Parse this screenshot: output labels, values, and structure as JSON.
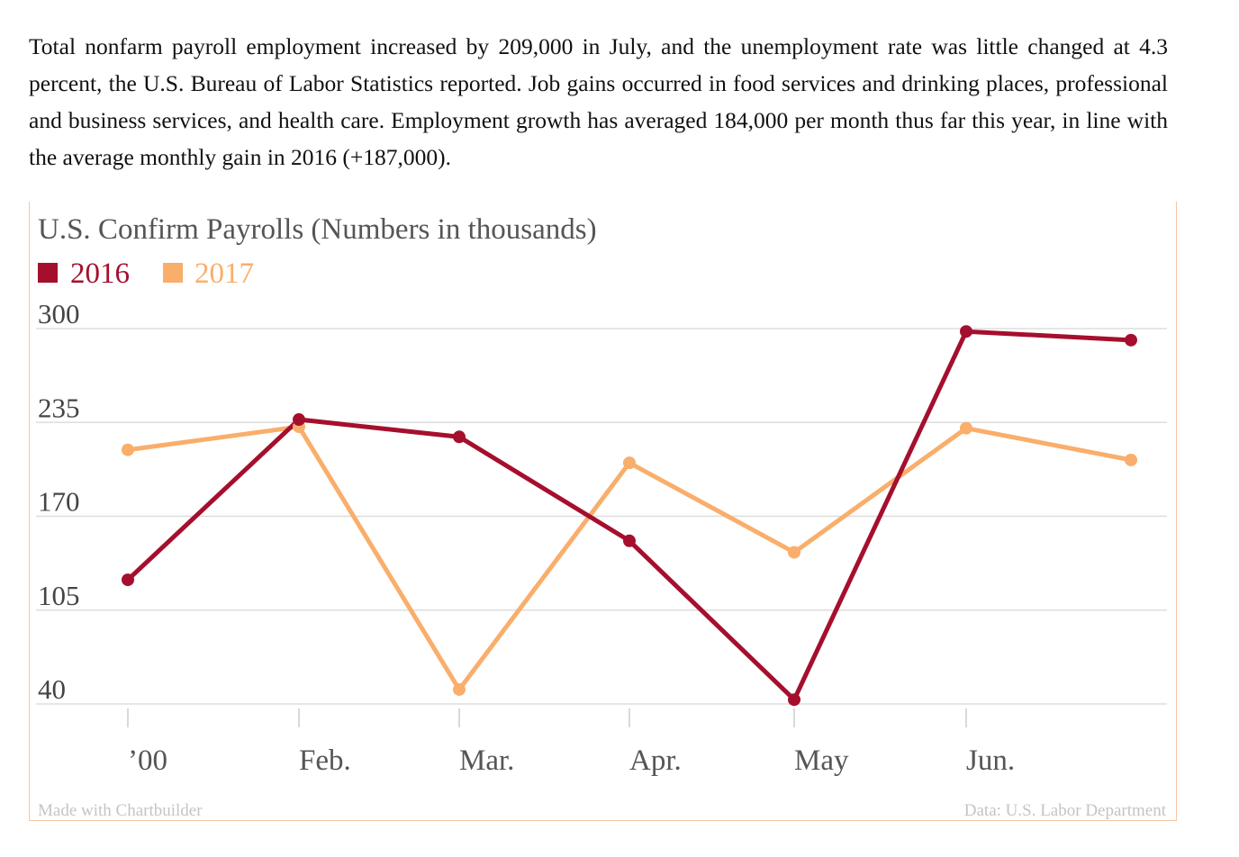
{
  "intro_text": "Total nonfarm payroll employment increased by 209,000 in July, and the unemployment rate was little changed at 4.3 percent, the U.S. Bureau of Labor Statistics reported. Job gains occurred in food services and drinking places, professional and business services, and health care. Employment growth has averaged 184,000 per month thus far this year, in line with the average monthly gain in 2016 (+187,000).",
  "chart_data": {
    "type": "line",
    "title": "U.S. Confirm Payrolls (Numbers in thousands)",
    "categories": [
      "’00",
      "Feb.",
      "Mar.",
      "Apr.",
      "May",
      "Jun.",
      ""
    ],
    "yticks": [
      40,
      105,
      170,
      235,
      300
    ],
    "ylim": [
      40,
      300
    ],
    "grid": true,
    "legend_position": "top-left",
    "series": [
      {
        "name": "2016",
        "color": "#a50f2d",
        "values": [
          126,
          237,
          225,
          153,
          43,
          298,
          292
        ]
      },
      {
        "name": "2017",
        "color": "#f9ae6b",
        "values": [
          216,
          232,
          50,
          207,
          145,
          231,
          209
        ]
      }
    ],
    "footer_left": "Made with Chartbuilder",
    "footer_right": "Data: U.S. Labor Department"
  }
}
